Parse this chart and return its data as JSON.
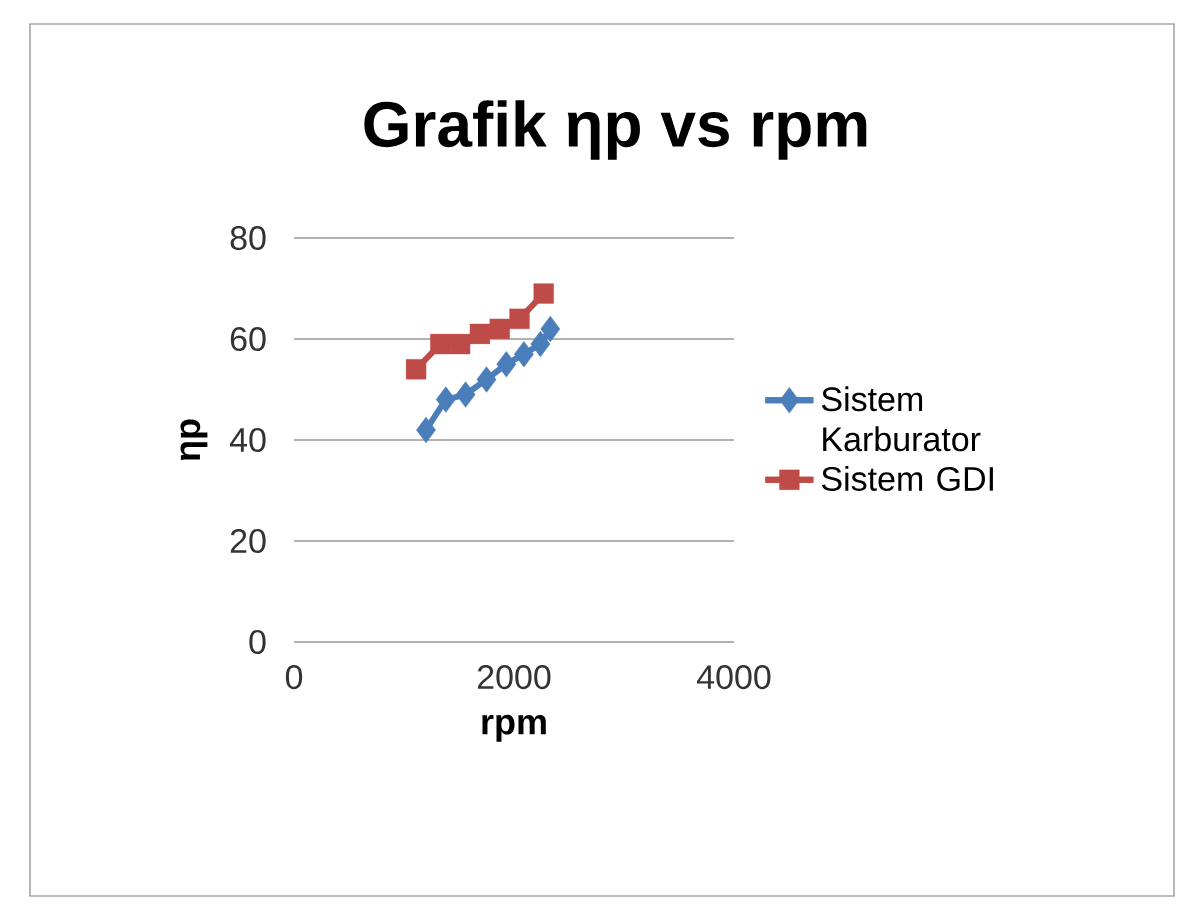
{
  "chart_data": {
    "type": "line",
    "title": "Grafik ηp vs rpm",
    "xlabel": "rpm",
    "ylabel": "ηp",
    "xlim": [
      0,
      4000
    ],
    "xticks": [
      0,
      2000,
      4000
    ],
    "ylim": [
      0,
      80
    ],
    "yticks": [
      0,
      20,
      40,
      60,
      80
    ],
    "grid": "y",
    "legend": "right",
    "line_style": "solid",
    "series": [
      {
        "name": "Sistem Karburator",
        "color": "#4a7ebb",
        "marker": "diamond",
        "x": [
          1200,
          1380,
          1560,
          1750,
          1930,
          2090,
          2240,
          2330
        ],
        "values": [
          42,
          48,
          49,
          52,
          55,
          57,
          59,
          62
        ]
      },
      {
        "name": "Sistem GDI",
        "color": "#be4b48",
        "marker": "square",
        "x": [
          1110,
          1330,
          1510,
          1690,
          1870,
          2050,
          2270
        ],
        "values": [
          54,
          59,
          59,
          61,
          62,
          64,
          69
        ]
      }
    ]
  }
}
